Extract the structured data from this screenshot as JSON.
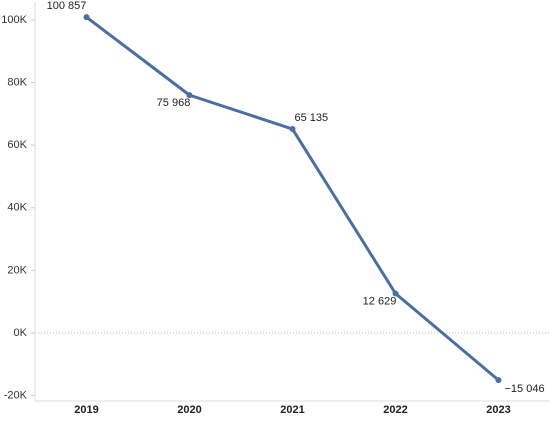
{
  "chart_data": {
    "type": "line",
    "categories": [
      "2019",
      "2020",
      "2021",
      "2022",
      "2023"
    ],
    "series": [
      {
        "color": "#4a6fa0",
        "values": [
          100857,
          75968,
          65135,
          12629,
          -15046
        ],
        "value_labels": [
          "100 857",
          "75 968",
          "65 135",
          "12 629",
          "−15 046"
        ]
      }
    ],
    "ylim": [
      -21700,
      105700
    ],
    "yticks": [
      {
        "value": -20000,
        "label": "-20K"
      },
      {
        "value": 0,
        "label": "0K"
      },
      {
        "value": 20000,
        "label": "20K"
      },
      {
        "value": 40000,
        "label": "40K"
      },
      {
        "value": 60000,
        "label": "60K"
      },
      {
        "value": 80000,
        "label": "80K"
      },
      {
        "value": 100000,
        "label": "100K"
      }
    ],
    "zero_line": true
  }
}
